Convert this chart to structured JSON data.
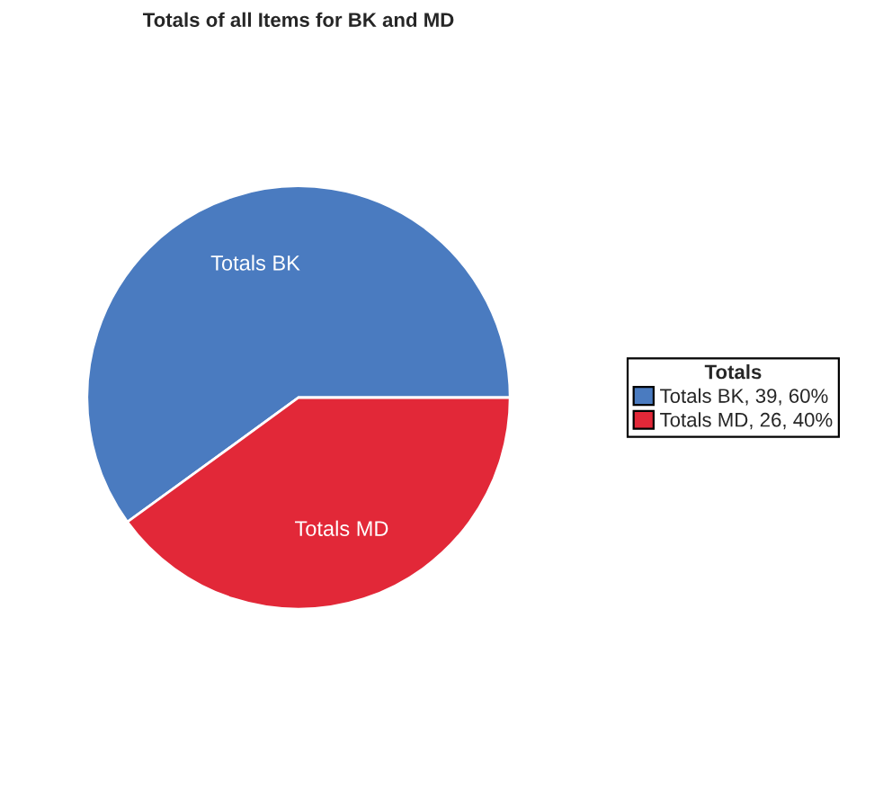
{
  "chart_data": {
    "type": "pie",
    "title": "Totals of all Items for BK and MD",
    "legend_title": "Totals",
    "categories": [
      "Totals BK",
      "Totals MD"
    ],
    "values": [
      39,
      26
    ],
    "colors": [
      "#4a7bc0",
      "#e22838"
    ],
    "value_labels": [
      ", 39, 60%",
      ", 26, 40%"
    ],
    "legend": "right"
  }
}
